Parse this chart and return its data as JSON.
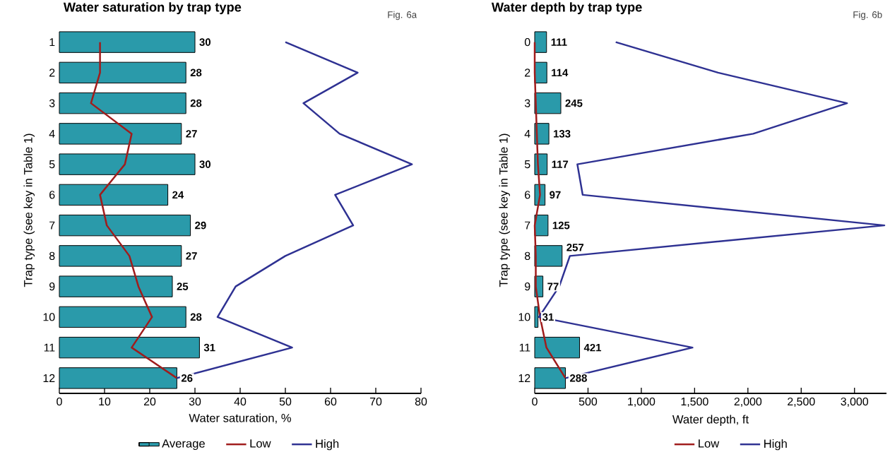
{
  "chart_data": [
    {
      "type": "bar",
      "orientation": "horizontal",
      "title": "Water saturation by trap type",
      "xlabel": "Water saturation, %",
      "ylabel": "Trap type (see key in Table 1)",
      "categories": [
        "1",
        "2",
        "3",
        "4",
        "5",
        "6",
        "7",
        "8",
        "9",
        "10",
        "11",
        "12"
      ],
      "series": [
        {
          "name": "Average",
          "color": "#2a9aaa",
          "values": [
            30,
            28,
            28,
            27,
            30,
            24,
            29,
            27,
            25,
            28,
            31,
            26
          ],
          "value_labels": [
            "30",
            "28",
            "28",
            "27",
            "30",
            "24",
            "29",
            "27",
            "25",
            "28",
            "31",
            "26"
          ]
        },
        {
          "name": "Low",
          "type": "line",
          "color": "#a01c1c",
          "values": [
            9,
            9,
            7,
            16,
            14.5,
            9,
            10.5,
            15.5,
            17.5,
            20.5,
            16,
            26
          ]
        },
        {
          "name": "High",
          "type": "line",
          "color": "#2e3192",
          "values": [
            50,
            66,
            54,
            62,
            78,
            61,
            65,
            50,
            39,
            35,
            51.5,
            26
          ]
        }
      ],
      "xlim": [
        0,
        80
      ],
      "xticks": [
        0,
        10,
        20,
        30,
        40,
        50,
        60,
        70,
        80
      ],
      "legend": "bottom",
      "annotations": [
        "Fig. 6a"
      ]
    },
    {
      "type": "bar",
      "orientation": "horizontal",
      "title": "Water depth by trap type",
      "xlabel": "Water depth, ft",
      "ylabel": "Trap type (see key in Table 1)",
      "categories": [
        "0",
        "2",
        "3",
        "4",
        "5",
        "6",
        "7",
        "8",
        "9",
        "10",
        "11",
        "12"
      ],
      "series": [
        {
          "color": "#2a9aaa",
          "values": [
            111,
            114,
            245,
            133,
            117,
            97,
            125,
            257,
            77,
            31,
            421,
            288
          ],
          "value_labels": [
            "111",
            "114",
            "245",
            "133",
            "117",
            "97",
            "125",
            "257",
            "77",
            "31",
            "421",
            "288"
          ]
        },
        {
          "name": "Low",
          "type": "line",
          "color": "#a01c1c",
          "values": [
            0,
            0,
            10,
            20,
            30,
            50,
            0,
            10,
            10,
            50,
            110,
            288
          ]
        },
        {
          "name": "High",
          "type": "line",
          "color": "#2e3192",
          "values": [
            760,
            1720,
            2930,
            2050,
            400,
            450,
            3280,
            330,
            230,
            40,
            1480,
            290
          ]
        }
      ],
      "xlim": [
        0,
        3300
      ],
      "xticks": [
        0,
        500,
        {
          "value": 1000,
          "label": "1,000"
        },
        {
          "value": 1500,
          "label": "1,500"
        },
        {
          "value": 2000,
          "label": "2,000"
        },
        {
          "value": 2500,
          "label": "2,500"
        },
        {
          "value": 3000,
          "label": "3,000"
        }
      ],
      "legend": "bottom",
      "annotations": [
        "Fig. 6b"
      ]
    }
  ]
}
